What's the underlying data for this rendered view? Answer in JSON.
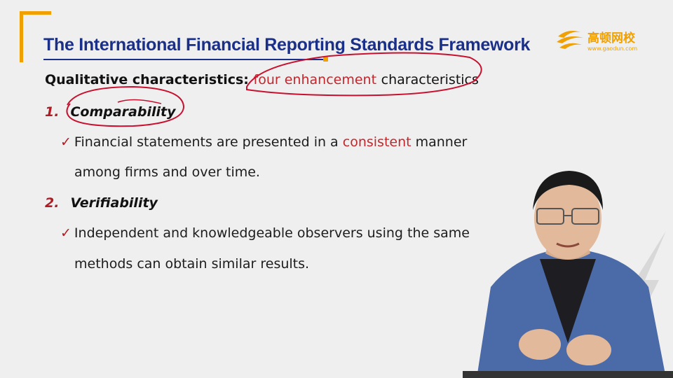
{
  "slide": {
    "title": "The International Financial Reporting Standards Framework",
    "heading_bold": "Qualitative characteristics:",
    "heading_red": "four enhancement",
    "heading_rest": "characteristics",
    "items": [
      {
        "number": "1.",
        "title": "Comparability",
        "checkmark": "✓",
        "line1_before": "Financial statements are presented in a ",
        "line1_red": "consistent",
        "line1_after": " manner",
        "line2": "among firms and over time."
      },
      {
        "number": "2.",
        "title": "Verifiability",
        "checkmark": "✓",
        "line1": "Independent and knowledgeable observers using the same",
        "line2": "methods can obtain similar results."
      }
    ]
  },
  "logo": {
    "name": "高顿网校",
    "url": "www.gaodun.com",
    "icon": "gaodun-logo-icon"
  },
  "colors": {
    "title_blue": "#1a2f8a",
    "accent_orange": "#f0a000",
    "emphasis_red": "#c0282e",
    "annotation_red": "#c8102e",
    "background": "#efefef"
  }
}
